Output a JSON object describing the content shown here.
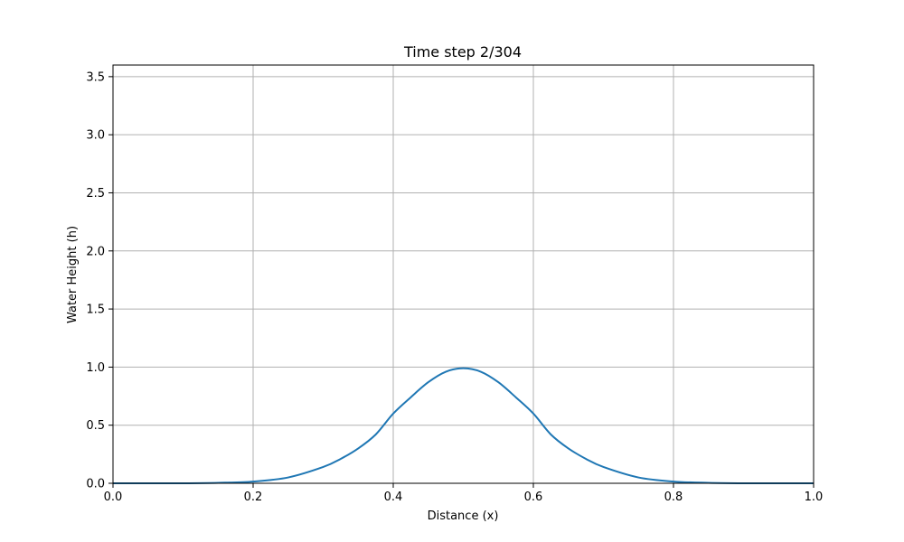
{
  "chart_data": {
    "type": "line",
    "title": "Time step 2/304",
    "xlabel": "Distance (x)",
    "ylabel": "Water Height (h)",
    "xlim": [
      0.0,
      1.0
    ],
    "ylim": [
      0.0,
      3.6
    ],
    "xticks": [
      0.0,
      0.2,
      0.4,
      0.6,
      0.8,
      1.0
    ],
    "xtick_labels": [
      "0.0",
      "0.2",
      "0.4",
      "0.6",
      "0.8",
      "1.0"
    ],
    "yticks": [
      0.0,
      0.5,
      1.0,
      1.5,
      2.0,
      2.5,
      3.0,
      3.5
    ],
    "ytick_labels": [
      "0.0",
      "0.5",
      "1.0",
      "1.5",
      "2.0",
      "2.5",
      "3.0",
      "3.5"
    ],
    "grid": true,
    "series": [
      {
        "color": "#1f77b4",
        "x": [
          0.0,
          0.05,
          0.1,
          0.15,
          0.2,
          0.25,
          0.3,
          0.325,
          0.35,
          0.375,
          0.4,
          0.425,
          0.45,
          0.475,
          0.5,
          0.525,
          0.55,
          0.575,
          0.6,
          0.625,
          0.65,
          0.675,
          0.7,
          0.75,
          0.8,
          0.85,
          0.9,
          0.95,
          1.0
        ],
        "y": [
          0.0,
          0.0,
          0.0,
          0.004,
          0.015,
          0.05,
          0.14,
          0.21,
          0.3,
          0.42,
          0.6,
          0.74,
          0.87,
          0.96,
          0.99,
          0.96,
          0.87,
          0.74,
          0.6,
          0.42,
          0.3,
          0.21,
          0.14,
          0.05,
          0.015,
          0.004,
          0.0,
          0.0,
          0.0
        ]
      }
    ]
  }
}
